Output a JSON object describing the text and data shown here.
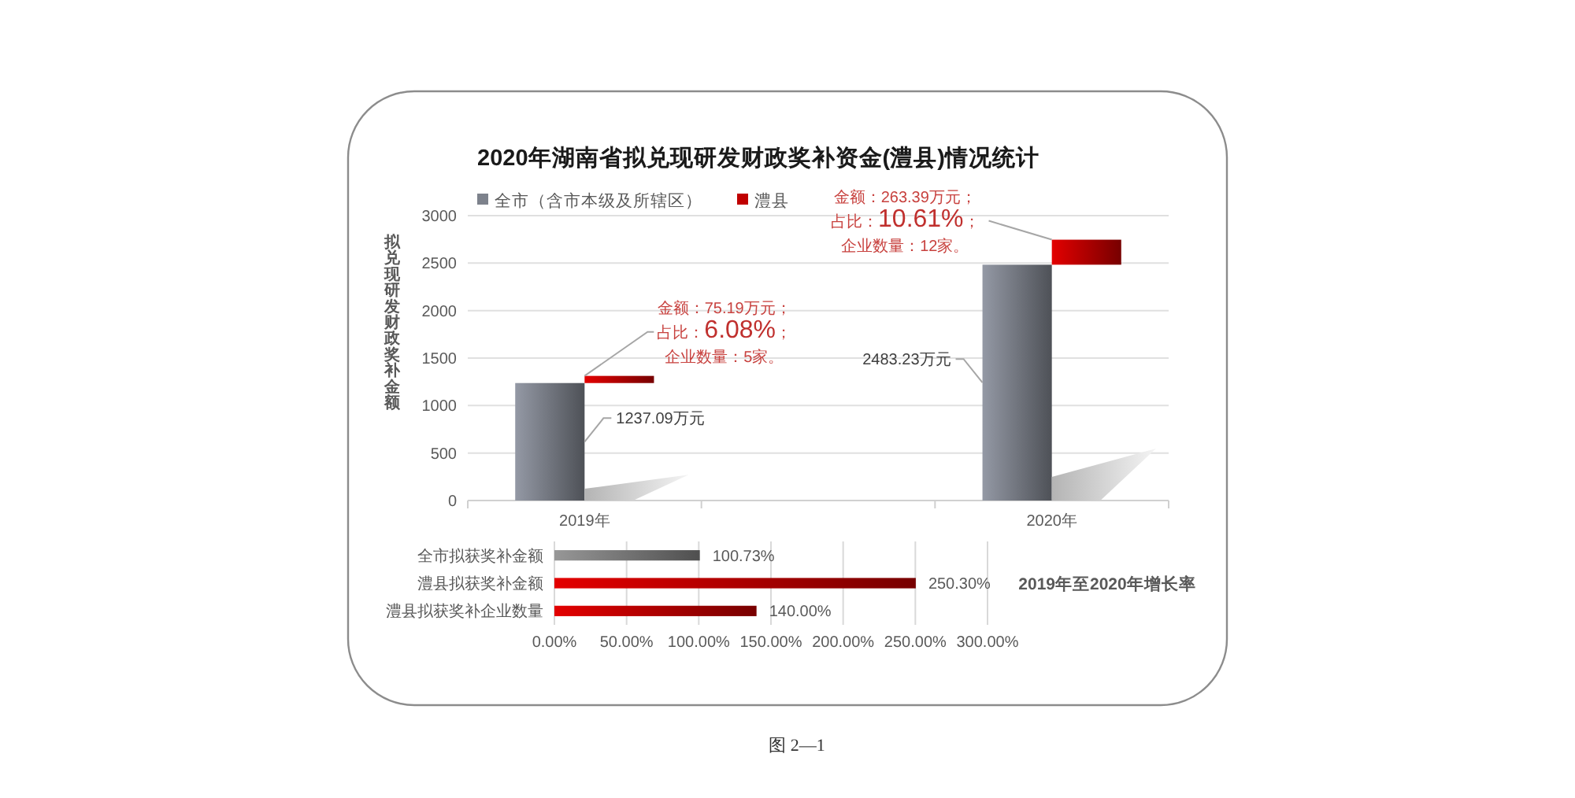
{
  "chart_data": [
    {
      "type": "bar",
      "title": "2020年湖南省拟兑现研发财政奖补资金(澧县)情况统计",
      "ylabel": "拟兑现研发财政奖补金额",
      "categories": [
        "2019年",
        null,
        "2020年"
      ],
      "series": [
        {
          "name": "全市（含市本级及所辖区）",
          "color": "#7d828c",
          "values": [
            1237.09,
            null,
            2483.23
          ],
          "value_labels": [
            "1237.09万元",
            null,
            "2483.23万元"
          ]
        },
        {
          "name": "澧县",
          "color": "#c00000",
          "values": [
            75.19,
            null,
            263.39
          ],
          "base": [
            1237.09,
            null,
            2483.23
          ]
        }
      ],
      "ylim": [
        0,
        3000
      ],
      "yticks": [
        0,
        500,
        1000,
        1500,
        2000,
        2500,
        3000
      ],
      "grid": "y",
      "legend": "top left",
      "annotations": [
        {
          "text": "金额：75.19万元；占比：6.08%；企业数量：5家。",
          "x": "2019年",
          "y": 1312.28
        },
        {
          "text": "金额：263.39万元；占比：10.61%；企业数量：12家。",
          "x": "2020年",
          "y": 2746.62
        }
      ]
    },
    {
      "type": "bar",
      "orientation": "horizontal",
      "title": "2019年至2020年增长率",
      "categories": [
        "全市拟获奖补金额",
        "澧县拟获奖补金额",
        "澧县拟获奖补企业数量"
      ],
      "values": [
        100.73,
        250.3,
        140
      ],
      "colors": [
        "#808080",
        "#c00000",
        "#c00000"
      ],
      "value_labels": [
        "100.73%",
        "250.30%",
        "140.00%"
      ],
      "xlim": [
        0,
        300
      ],
      "xticks": [
        {
          "value": 0,
          "label": "0.00%"
        },
        {
          "value": 50,
          "label": "50.00%"
        },
        {
          "value": 100,
          "label": "100.00%"
        },
        {
          "value": 150,
          "label": "150.00%"
        },
        {
          "value": 200,
          "label": "200.00%"
        },
        {
          "value": 250,
          "label": "250.00%"
        },
        {
          "value": 300,
          "label": "300.00%"
        }
      ],
      "grid": "x",
      "annotations": [
        "图 2—1"
      ]
    }
  ]
}
